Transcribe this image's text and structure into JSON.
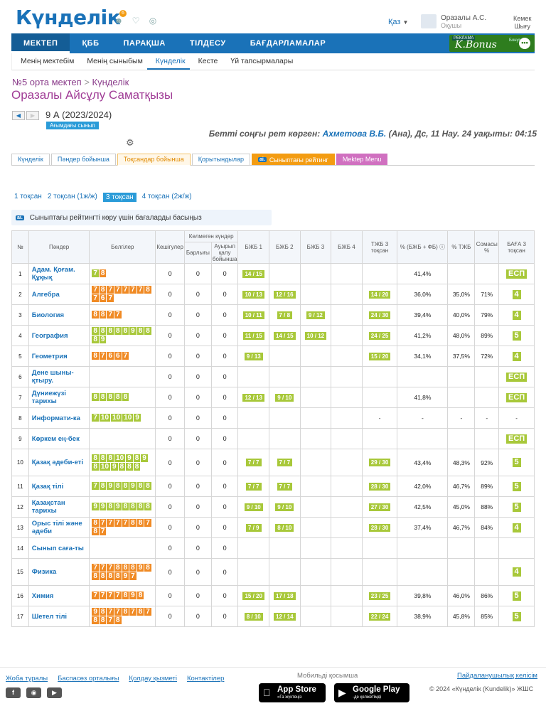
{
  "header": {
    "logo": "Күнделік",
    "badge": "6",
    "lang": "Қаз",
    "user_name": "Оразалы А.С.",
    "user_role": "Оқушы",
    "logout_line1": "Кемек",
    "logout_line2": "Шығу"
  },
  "nav": {
    "items": [
      "МЕКТЕП",
      "ҚББ",
      "ПАРАҚША",
      "ТІЛДЕСУ",
      "БАҒДАРЛАМАЛАР"
    ]
  },
  "kbonus": {
    "tag": "РЕКЛАМА",
    "label": "K.Bonus",
    "small": "Бонус 5"
  },
  "subnav": {
    "items": [
      "Менің мектебім",
      "Менің сыныбым",
      "Күнделік",
      "Кесте",
      "Үй тапсырмалары"
    ]
  },
  "breadcrumb": {
    "school": "№5 орта мектеп",
    "sep": ">",
    "page": "Күнделік"
  },
  "person": {
    "name": "Оразалы Айсұлу Саматқызы"
  },
  "class": {
    "name": "9 А (2023/2024)",
    "current": "Ағымдағы сынып"
  },
  "lastseen": {
    "prefix": "Бетті соңғы рет көрген:",
    "who": "Ахметова В.Б.",
    "suffix": "(Ана), Дс, 11 Нау. 24 уақыты: 04:15"
  },
  "tabs": [
    "Күнделік",
    "Пәндер бойынша",
    "Тоқсандар бойынша",
    "Қорытындылар",
    "Сыныптағы рейтинг",
    "Mektep Menu"
  ],
  "ai_label": "ai.",
  "quarters": [
    "1 тоқсан",
    "2 тоқсан (1ж/ж)",
    "3 тоқсан",
    "4 тоқсан (2ж/ж)"
  ],
  "rating_hint": "Сыныптағы рейтингті көру үшін бағаларды басыңыз",
  "table": {
    "headers": {
      "no": "№",
      "subject": "Пәндер",
      "marks": "Белгілер",
      "late": "Кешігулер",
      "absent_group": "Келмеген күндер",
      "absent_total": "Барлығы",
      "absent_sick": "Ауырып қалу бойынша",
      "bjb1": "БЖБ 1",
      "bjb2": "БЖБ 2",
      "bjb3": "БЖБ 3",
      "bjb4": "БЖБ 4",
      "tjb": "ТЖБ 3 тоқсан",
      "pct_bjb": "% (БЖБ + ФБ)",
      "pct_tjb": "% ТЖБ",
      "pct_sum": "Сомасы %",
      "grade": "БАҒА 3 тоқсан"
    },
    "rows": [
      {
        "no": "1",
        "subject": "Адам. Қоғам. Құқық",
        "marks": [
          [
            "7",
            "g"
          ],
          [
            "8",
            "o"
          ]
        ],
        "late": "0",
        "abs": "0",
        "sick": "0",
        "bjb1": "14 / 15",
        "bjb2": "",
        "bjb3": "",
        "bjb4": "",
        "tjb": "",
        "pb": "41,4%",
        "pt": "",
        "ps": "",
        "grade": "ЕСП"
      },
      {
        "no": "2",
        "subject": "Алгебра",
        "marks": [
          [
            "7",
            "o"
          ],
          [
            "8",
            "o"
          ],
          [
            "7",
            "o"
          ],
          [
            "7",
            "o"
          ],
          [
            "7",
            "o"
          ],
          [
            "7",
            "o"
          ],
          [
            "7",
            "o"
          ],
          [
            "8",
            "o"
          ],
          [
            "7",
            "o"
          ],
          [
            "6",
            "o"
          ],
          [
            "7",
            "o"
          ]
        ],
        "late": "0",
        "abs": "0",
        "sick": "0",
        "bjb1": "10 / 13",
        "bjb2": "12 / 16",
        "bjb3": "",
        "bjb4": "",
        "tjb": "14 / 20",
        "pb": "36,0%",
        "pt": "35,0%",
        "ps": "71%",
        "grade": "4"
      },
      {
        "no": "3",
        "subject": "Биология",
        "marks": [
          [
            "8",
            "o"
          ],
          [
            "8",
            "o"
          ],
          [
            "7",
            "o"
          ],
          [
            "7",
            "o"
          ]
        ],
        "late": "0",
        "abs": "0",
        "sick": "0",
        "bjb1": "10 / 11",
        "bjb2": "7 / 8",
        "bjb3": "9 / 12",
        "bjb4": "",
        "tjb": "24 / 30",
        "pb": "39,4%",
        "pt": "40,0%",
        "ps": "79%",
        "grade": "4"
      },
      {
        "no": "4",
        "subject": "География",
        "marks": [
          [
            "8",
            "g"
          ],
          [
            "8",
            "g"
          ],
          [
            "8",
            "g"
          ],
          [
            "8",
            "g"
          ],
          [
            "8",
            "g"
          ],
          [
            "9",
            "g"
          ],
          [
            "8",
            "g"
          ],
          [
            "8",
            "g"
          ],
          [
            "8",
            "g"
          ],
          [
            "9",
            "g"
          ]
        ],
        "late": "0",
        "abs": "0",
        "sick": "0",
        "bjb1": "11 / 15",
        "bjb2": "14 / 15",
        "bjb3": "10 / 12",
        "bjb4": "",
        "tjb": "24 / 25",
        "pb": "41,2%",
        "pt": "48,0%",
        "ps": "89%",
        "grade": "5"
      },
      {
        "no": "5",
        "subject": "Геометрия",
        "marks": [
          [
            "8",
            "o"
          ],
          [
            "7",
            "o"
          ],
          [
            "6",
            "o"
          ],
          [
            "6",
            "o"
          ],
          [
            "7",
            "o"
          ]
        ],
        "late": "0",
        "abs": "0",
        "sick": "0",
        "bjb1": "9 / 13",
        "bjb2": "",
        "bjb3": "",
        "bjb4": "",
        "tjb": "15 / 20",
        "pb": "34,1%",
        "pt": "37,5%",
        "ps": "72%",
        "grade": "4"
      },
      {
        "no": "6",
        "subject": "Дене шыны-қтыру.",
        "marks": [],
        "late": "0",
        "abs": "0",
        "sick": "0",
        "bjb1": "",
        "bjb2": "",
        "bjb3": "",
        "bjb4": "",
        "tjb": "",
        "pb": "",
        "pt": "",
        "ps": "",
        "grade": "ЕСП"
      },
      {
        "no": "7",
        "subject": "Дүниежүзі тарихы",
        "marks": [
          [
            "8",
            "g"
          ],
          [
            "8",
            "g"
          ],
          [
            "8",
            "g"
          ],
          [
            "8",
            "g"
          ],
          [
            "8",
            "g"
          ]
        ],
        "late": "0",
        "abs": "0",
        "sick": "0",
        "bjb1": "12 / 13",
        "bjb2": "9 / 10",
        "bjb3": "",
        "bjb4": "",
        "tjb": "",
        "pb": "41,8%",
        "pt": "",
        "ps": "",
        "grade": "ЕСП"
      },
      {
        "no": "8",
        "subject": "Информати-ка",
        "marks": [
          [
            "7",
            "g"
          ],
          [
            "10",
            "g"
          ],
          [
            "10",
            "g"
          ],
          [
            "10",
            "g"
          ],
          [
            "9",
            "g"
          ]
        ],
        "late": "0",
        "abs": "0",
        "sick": "0",
        "bjb1": "",
        "bjb2": "",
        "bjb3": "",
        "bjb4": "",
        "tjb": "-",
        "pb": "-",
        "pt": "-",
        "ps": "-",
        "grade": "-"
      },
      {
        "no": "9",
        "subject": "Көркем ең-бек",
        "marks": [],
        "late": "0",
        "abs": "0",
        "sick": "0",
        "bjb1": "",
        "bjb2": "",
        "bjb3": "",
        "bjb4": "",
        "tjb": "",
        "pb": "",
        "pt": "",
        "ps": "",
        "grade": "ЕСП"
      },
      {
        "no": "10",
        "subject": "Қазақ әдеби-еті",
        "marks": [
          [
            "8",
            "g"
          ],
          [
            "8",
            "g"
          ],
          [
            "8",
            "g"
          ],
          [
            "10",
            "g"
          ],
          [
            "9",
            "g"
          ],
          [
            "8",
            "g"
          ],
          [
            "9",
            "g"
          ],
          [
            "8",
            "g"
          ],
          [
            "10",
            "g"
          ],
          [
            "9",
            "g"
          ],
          [
            "8",
            "g"
          ],
          [
            "8",
            "g"
          ],
          [
            "8",
            "g"
          ]
        ],
        "late": "0",
        "abs": "0",
        "sick": "0",
        "bjb1": "7 / 7",
        "bjb2": "7 / 7",
        "bjb3": "",
        "bjb4": "",
        "tjb": "29 / 30",
        "pb": "43,4%",
        "pt": "48,3%",
        "ps": "92%",
        "grade": "5"
      },
      {
        "no": "11",
        "subject": "Қазақ тілі",
        "marks": [
          [
            "7",
            "g"
          ],
          [
            "8",
            "g"
          ],
          [
            "9",
            "g"
          ],
          [
            "8",
            "g"
          ],
          [
            "8",
            "g"
          ],
          [
            "9",
            "g"
          ],
          [
            "8",
            "g"
          ],
          [
            "8",
            "g"
          ]
        ],
        "late": "0",
        "abs": "0",
        "sick": "0",
        "bjb1": "7 / 7",
        "bjb2": "7 / 7",
        "bjb3": "",
        "bjb4": "",
        "tjb": "28 / 30",
        "pb": "42,0%",
        "pt": "46,7%",
        "ps": "89%",
        "grade": "5"
      },
      {
        "no": "12",
        "subject": "Қазақстан тарихы",
        "marks": [
          [
            "9",
            "g"
          ],
          [
            "9",
            "g"
          ],
          [
            "8",
            "g"
          ],
          [
            "9",
            "g"
          ],
          [
            "8",
            "g"
          ],
          [
            "8",
            "g"
          ],
          [
            "8",
            "g"
          ],
          [
            "8",
            "g"
          ]
        ],
        "late": "0",
        "abs": "0",
        "sick": "0",
        "bjb1": "9 / 10",
        "bjb2": "9 / 10",
        "bjb3": "",
        "bjb4": "",
        "tjb": "27 / 30",
        "pb": "42,5%",
        "pt": "45,0%",
        "ps": "88%",
        "grade": "5"
      },
      {
        "no": "13",
        "subject": "Орыс тілі және әдеби",
        "marks": [
          [
            "8",
            "o"
          ],
          [
            "7",
            "o"
          ],
          [
            "7",
            "o"
          ],
          [
            "7",
            "o"
          ],
          [
            "7",
            "o"
          ],
          [
            "8",
            "o"
          ],
          [
            "8",
            "o"
          ],
          [
            "7",
            "o"
          ],
          [
            "8",
            "o"
          ],
          [
            "7",
            "o"
          ]
        ],
        "late": "0",
        "abs": "0",
        "sick": "0",
        "bjb1": "7 / 9",
        "bjb2": "8 / 10",
        "bjb3": "",
        "bjb4": "",
        "tjb": "28 / 30",
        "pb": "37,4%",
        "pt": "46,7%",
        "ps": "84%",
        "grade": "4"
      },
      {
        "no": "14",
        "subject": "Сынып сағa-ты",
        "marks": [],
        "late": "0",
        "abs": "0",
        "sick": "0",
        "bjb1": "",
        "bjb2": "",
        "bjb3": "",
        "bjb4": "",
        "tjb": "",
        "pb": "",
        "pt": "",
        "ps": "",
        "grade": ""
      },
      {
        "no": "15",
        "subject": "Физика",
        "marks": [
          [
            "7",
            "o"
          ],
          [
            "7",
            "o"
          ],
          [
            "7",
            "o"
          ],
          [
            "8",
            "o"
          ],
          [
            "8",
            "o"
          ],
          [
            "8",
            "o"
          ],
          [
            "9",
            "o"
          ],
          [
            "8",
            "o"
          ],
          [
            "8",
            "o"
          ],
          [
            "8",
            "o"
          ],
          [
            "8",
            "o"
          ],
          [
            "8",
            "o"
          ],
          [
            "9",
            "o"
          ],
          [
            "7",
            "o"
          ]
        ],
        "late": "0",
        "abs": "0",
        "sick": "0",
        "bjb1": "",
        "bjb2": "",
        "bjb3": "",
        "bjb4": "",
        "tjb": "",
        "pb": "",
        "pt": "",
        "ps": "",
        "grade": "4"
      },
      {
        "no": "16",
        "subject": "Химия",
        "marks": [
          [
            "7",
            "o"
          ],
          [
            "7",
            "o"
          ],
          [
            "7",
            "o"
          ],
          [
            "7",
            "o"
          ],
          [
            "8",
            "o"
          ],
          [
            "9",
            "o"
          ],
          [
            "8",
            "o"
          ]
        ],
        "late": "0",
        "abs": "0",
        "sick": "0",
        "bjb1": "15 / 20",
        "bjb2": "17 / 18",
        "bjb3": "",
        "bjb4": "",
        "tjb": "23 / 25",
        "pb": "39,8%",
        "pt": "46,0%",
        "ps": "86%",
        "grade": "5"
      },
      {
        "no": "17",
        "subject": "Шетел тілі",
        "marks": [
          [
            "9",
            "o"
          ],
          [
            "8",
            "o"
          ],
          [
            "7",
            "o"
          ],
          [
            "7",
            "o"
          ],
          [
            "8",
            "o"
          ],
          [
            "7",
            "o"
          ],
          [
            "8",
            "o"
          ],
          [
            "7",
            "o"
          ],
          [
            "8",
            "o"
          ],
          [
            "8",
            "o"
          ],
          [
            "7",
            "o"
          ],
          [
            "8",
            "o"
          ]
        ],
        "late": "0",
        "abs": "0",
        "sick": "0",
        "bjb1": "8 / 10",
        "bjb2": "12 / 14",
        "bjb3": "",
        "bjb4": "",
        "tjb": "22 / 24",
        "pb": "38,9%",
        "pt": "45,8%",
        "ps": "85%",
        "grade": "5"
      }
    ]
  },
  "footer": {
    "links": [
      "Жоба туралы",
      "Баспасөз орталығы",
      "Қолдау қызметі",
      "Контактілер"
    ],
    "mobile": "Мобильді қосымша",
    "privacy": "Пайдаланушылық келісім",
    "appstore_name": "App Store",
    "appstore_sub": "«Га жүктеңіз",
    "googleplay_name": "Google Play",
    "googleplay_sub": "-де қолжетімді",
    "copyright": "© 2024 «Күнделік (Kundelik)» ЖШС"
  },
  "colors": {
    "primary": "#1a72b8",
    "mark_green": "#a8c83a",
    "mark_orange": "#f08a24",
    "title_purple": "#a03c96"
  }
}
